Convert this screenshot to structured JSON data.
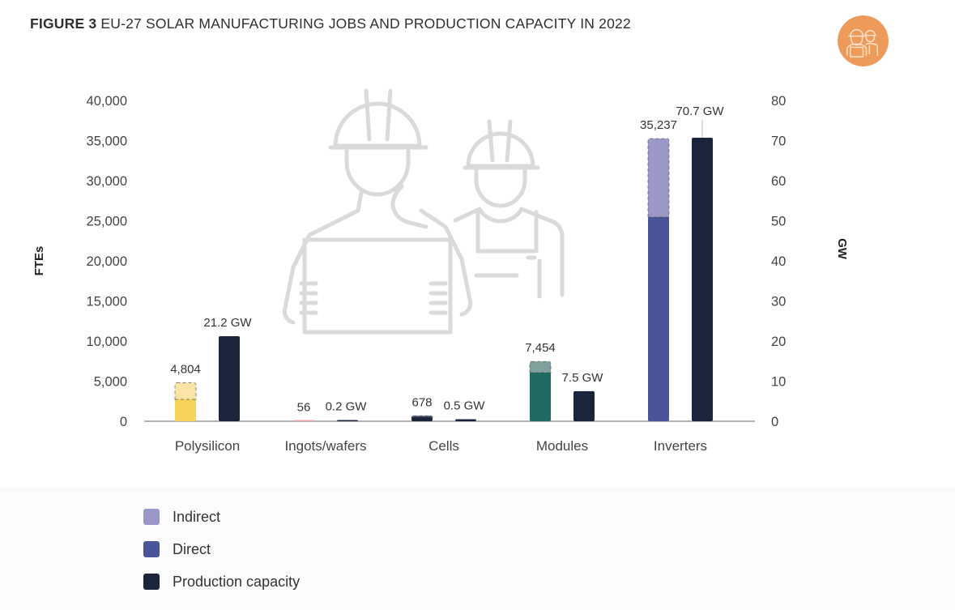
{
  "figure": {
    "label": "FIGURE 3",
    "title": "EU-27 SOLAR MANUFACTURING JOBS AND PRODUCTION CAPACITY IN 2022",
    "badge_icon": "construction-workers-icon",
    "badge_color": "#ee9a5a"
  },
  "colors": {
    "indirect": "#9a98c8",
    "direct": "#4a5499",
    "capacity": "#1b253a",
    "axis": "#9a9aa0",
    "illustration": "#d8d8d8"
  },
  "chart_data": {
    "type": "bar",
    "title": "EU-27 solar manufacturing jobs and production capacity in 2022",
    "categories": [
      "Polysilicon",
      "Ingots/wafers",
      "Cells",
      "Modules",
      "Inverters"
    ],
    "y_left": {
      "label": "FTEs",
      "range": [
        0,
        40000
      ],
      "ticks": [
        "0",
        "5,000",
        "10,000",
        "15,000",
        "20,000",
        "25,000",
        "30,000",
        "35,000",
        "40,000"
      ],
      "tick_values": [
        0,
        5000,
        10000,
        15000,
        20000,
        25000,
        30000,
        35000,
        40000
      ]
    },
    "y_right": {
      "label": "GW",
      "range": [
        0,
        80
      ],
      "ticks": [
        "0",
        "10",
        "20",
        "30",
        "40",
        "50",
        "60",
        "70",
        "80"
      ],
      "tick_values": [
        0,
        10,
        20,
        30,
        40,
        50,
        60,
        70,
        80
      ]
    },
    "series": [
      {
        "name": "Indirect",
        "axis": "left",
        "stacked_on": "Direct",
        "values": [
          2074,
          20,
          180,
          1394,
          9787
        ]
      },
      {
        "name": "Direct",
        "axis": "left",
        "values": [
          2730,
          36,
          498,
          6060,
          25450
        ]
      },
      {
        "name": "Production capacity",
        "axis": "right",
        "values": [
          21.2,
          0.2,
          0.5,
          7.5,
          70.7
        ]
      }
    ],
    "jobs_totals": [
      4804,
      56,
      678,
      7454,
      35237
    ],
    "jobs_labels": [
      "4,804",
      "56",
      "678",
      "7,454",
      "35,237"
    ],
    "capacity_labels": [
      "21.2 GW",
      "0.2 GW",
      "0.5 GW",
      "7.5 GW",
      "70.7 GW"
    ],
    "category_colors": {
      "direct": [
        "#f6d35b",
        "#e9a7a3",
        "#1b253a",
        "#1e6a62",
        "#4a5499"
      ],
      "indirect": [
        "#fbe3a6",
        "#f2cfcc",
        "#4a5068",
        "#7fa09a",
        "#9a98c8"
      ]
    },
    "legend": [
      "Indirect",
      "Direct",
      "Production capacity"
    ],
    "legend_position": "bottom-left",
    "grid": false
  },
  "legend": {
    "items": [
      {
        "label": "Indirect",
        "color": "#9a98c8"
      },
      {
        "label": "Direct",
        "color": "#4a5499"
      },
      {
        "label": "Production capacity",
        "color": "#1b253a"
      }
    ]
  }
}
